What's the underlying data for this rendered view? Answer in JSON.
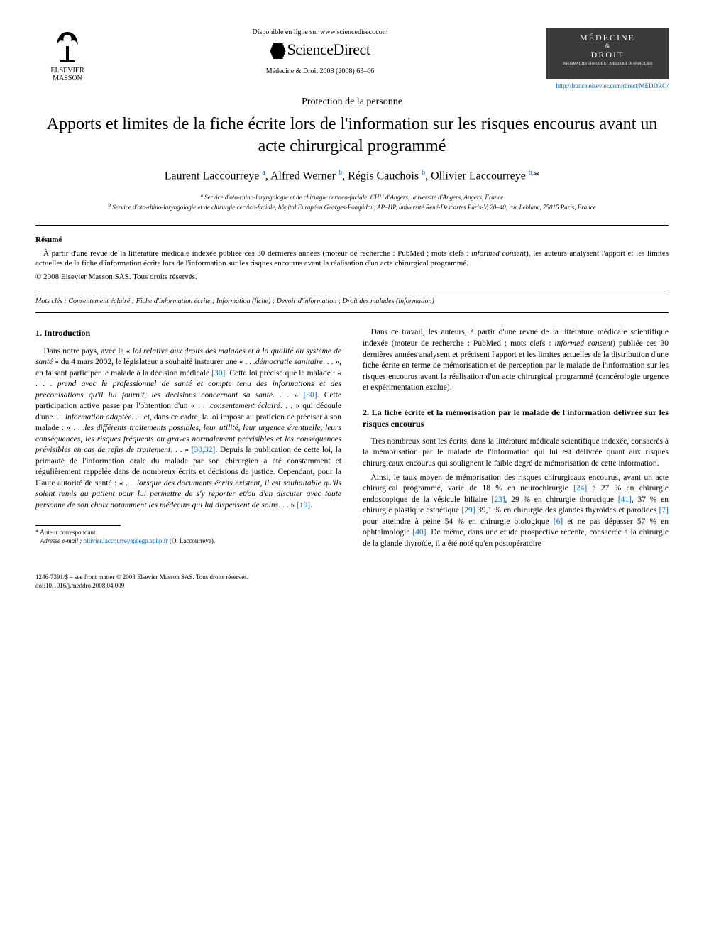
{
  "header": {
    "publisher_name": "ELSEVIER MASSON",
    "available_text": "Disponible en ligne sur www.sciencedirect.com",
    "sd_name": "ScienceDirect",
    "journal_ref": "Médecine & Droit 2008 (2008) 63–66",
    "journal_title_1": "MÉDECINE",
    "journal_title_2": "DROIT",
    "journal_subtitle": "INFORMATION ÉTHIQUE ET JURIDIQUE DU PRATICIEN",
    "journal_url": "http://france.elsevier.com/direct/MEDDRO/"
  },
  "article": {
    "category": "Protection de la personne",
    "title": "Apports et limites de la fiche écrite lors de l'information sur les risques encourus avant un acte chirurgical programmé",
    "authors_html": "Laurent Laccourreye <sup>a</sup>, Alfred Werner <sup>b</sup>, Régis Cauchois <sup>b</sup>, Ollivier Laccourreye <sup>b,</sup>*",
    "affil_a": "Service d'oto-rhino-laryngologie et de chirurgie cervico-faciale, CHU d'Angers, université d'Angers, Angers, France",
    "affil_b": "Service d'oto-rhino-laryngologie et de chirurgie cervico-faciale, hôpital Européen Georges-Pompidou, AP–HP, université René-Descartes Paris-V, 20–40, rue Leblanc, 75015 Paris, France"
  },
  "abstract": {
    "head": "Résumé",
    "text": "À partir d'une revue de la littérature médicale indexée publiée ces 30 dernières années (moteur de recherche : PubMed ; mots clefs : informed consent), les auteurs analysent l'apport et les limites actuelles de la fiche d'information écrite lors de l'information sur les risques encourus avant la réalisation d'un acte chirurgical programmé.",
    "copyright": "© 2008 Elsevier Masson SAS. Tous droits réservés."
  },
  "keywords": {
    "label": "Mots clés :",
    "text": "Consentement éclairé ; Fiche d'information écrite ; Information (fiche) ; Devoir d'information ; Droit des malades (information)"
  },
  "sections": {
    "s1_head": "1. Introduction",
    "s1_p1": "Dans notre pays, avec la « loi relative aux droits des malades et à la qualité du système de santé » du 4 mars 2002, le législateur a souhaité instaurer une « . . .démocratie sanitaire. . . », en faisant participer le malade à la décision médicale [30]. Cette loi précise que le malade : « . . . prend avec le professionnel de santé et compte tenu des informations et des préconisations qu'il lui fournit, les décisions concernant sa santé. . . » [30]. Cette participation active passe par l'obtention d'un « . . .consentement éclairé. . . » qui découle d'une. . . information adaptée. . . et, dans ce cadre, la loi impose au praticien de préciser à son malade : « . . .les différents traitements possibles, leur utilité, leur urgence éventuelle, leurs conséquences, les risques fréquents ou graves normalement prévisibles et les conséquences prévisibles en cas de refus de traitement. . . » [30,32]. Depuis la publication de cette loi, la primauté de l'information orale du malade par son chirurgien a été constamment et régulièrement rappelée dans de nombreux écrits et décisions de justice. Cependant, pour la Haute autorité de santé : « . . .lorsque des documents écrits existent, il est souhaitable qu'ils soient remis au patient pour lui permettre de s'y reporter et/ou d'en discuter avec toute personne de son choix notamment les médecins qui lui dispensent de soins. . . » [19].",
    "s1_p2": "Dans ce travail, les auteurs, à partir d'une revue de la littérature médicale scientifique indexée (moteur de recherche : PubMed ; mots clefs : informed consent) publiée ces 30 dernières années analysent et précisent l'apport et les limites actuelles de la distribution d'une fiche écrite en terme de mémorisation et de perception par le malade de l'information sur les risques encourus avant la réalisation d'un acte chirurgical programmé (cancérologie urgence et expérimentation exclue).",
    "s2_head": "2. La fiche écrite et la mémorisation par le malade de l'information délivrée sur les risques encourus",
    "s2_p1": "Très nombreux sont les écrits, dans la littérature médicale scientifique indexée, consacrés à la mémorisation par le malade de l'information qui lui est délivrée quant aux risques chirurgicaux encourus qui soulignent le faible degré de mémorisation de cette information.",
    "s2_p2": "Ainsi, le taux moyen de mémorisation des risques chirurgicaux encourus, avant un acte chirurgical programmé, varie de 18 % en neurochirurgie [24] à 27 % en chirurgie endoscopique de la vésicule biliaire [23], 29 % en chirurgie thoracique [41], 37 % en chirurgie plastique esthétique [29] 39,1 % en chirurgie des glandes thyroïdes et parotides [7] pour atteindre à peine 54 % en chirurgie otologique [6] et ne pas dépasser 57 % en ophtalmologie [40]. De même, dans une étude prospective récente, consacrée à la chirurgie de la glande thyroïde, il a été noté qu'en postopératoire"
  },
  "footnote": {
    "corr": "* Auteur correspondant.",
    "email_label": "Adresse e-mail :",
    "email": "ollivier.laccourreye@egp.aphp.fr",
    "email_person": "(O. Laccourreye)."
  },
  "footer": {
    "issn": "1246-7391/$ – see front matter © 2008 Elsevier Masson SAS. Tous droits réservés.",
    "doi": "doi:10.1016/j.meddro.2008.04.009"
  },
  "colors": {
    "link": "#0066cc",
    "text": "#000000",
    "bg": "#ffffff"
  }
}
